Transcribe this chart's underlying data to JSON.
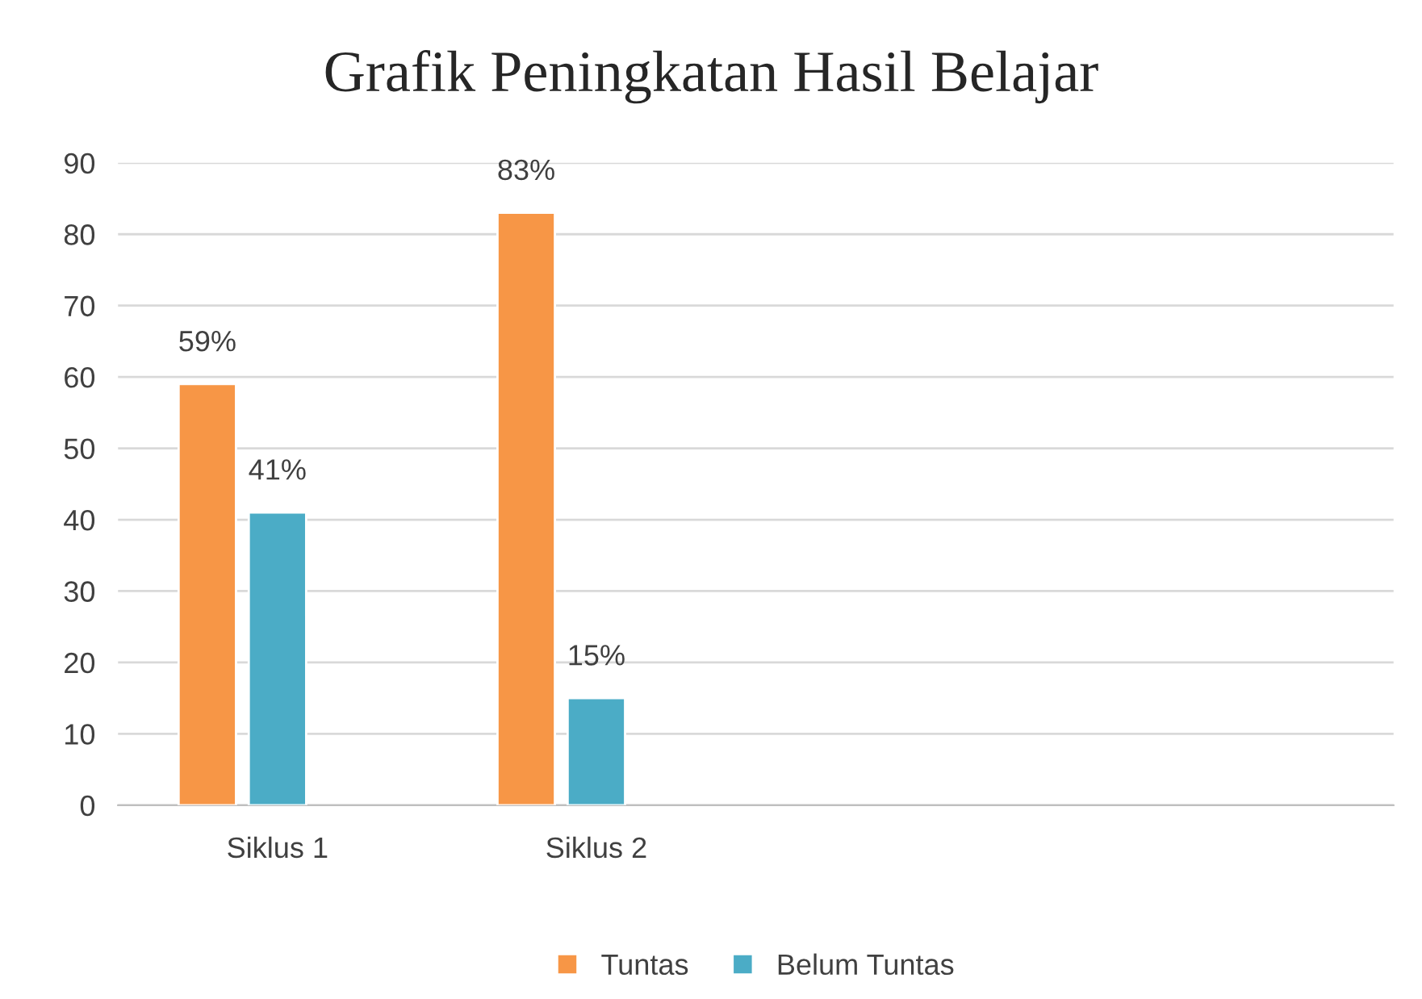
{
  "chart_data": {
    "type": "bar",
    "title": "Grafik Peningkatan Hasil Belajar",
    "categories": [
      "Siklus 1",
      "Siklus 2",
      null,
      null
    ],
    "series": [
      {
        "name": "Tuntas",
        "color": "#f79646",
        "values": [
          59,
          83,
          null,
          null
        ],
        "value_labels": [
          "59%",
          "83%",
          null,
          null
        ]
      },
      {
        "name": "Belum Tuntas",
        "color": "#4bacc6",
        "values": [
          41,
          15,
          null,
          null
        ],
        "value_labels": [
          "41%",
          "15%",
          null,
          null
        ]
      }
    ],
    "ylim": [
      0,
      90
    ],
    "yticks": [
      0,
      10,
      20,
      30,
      40,
      50,
      60,
      70,
      80,
      90
    ],
    "grid": "y",
    "legend": "bottom"
  }
}
